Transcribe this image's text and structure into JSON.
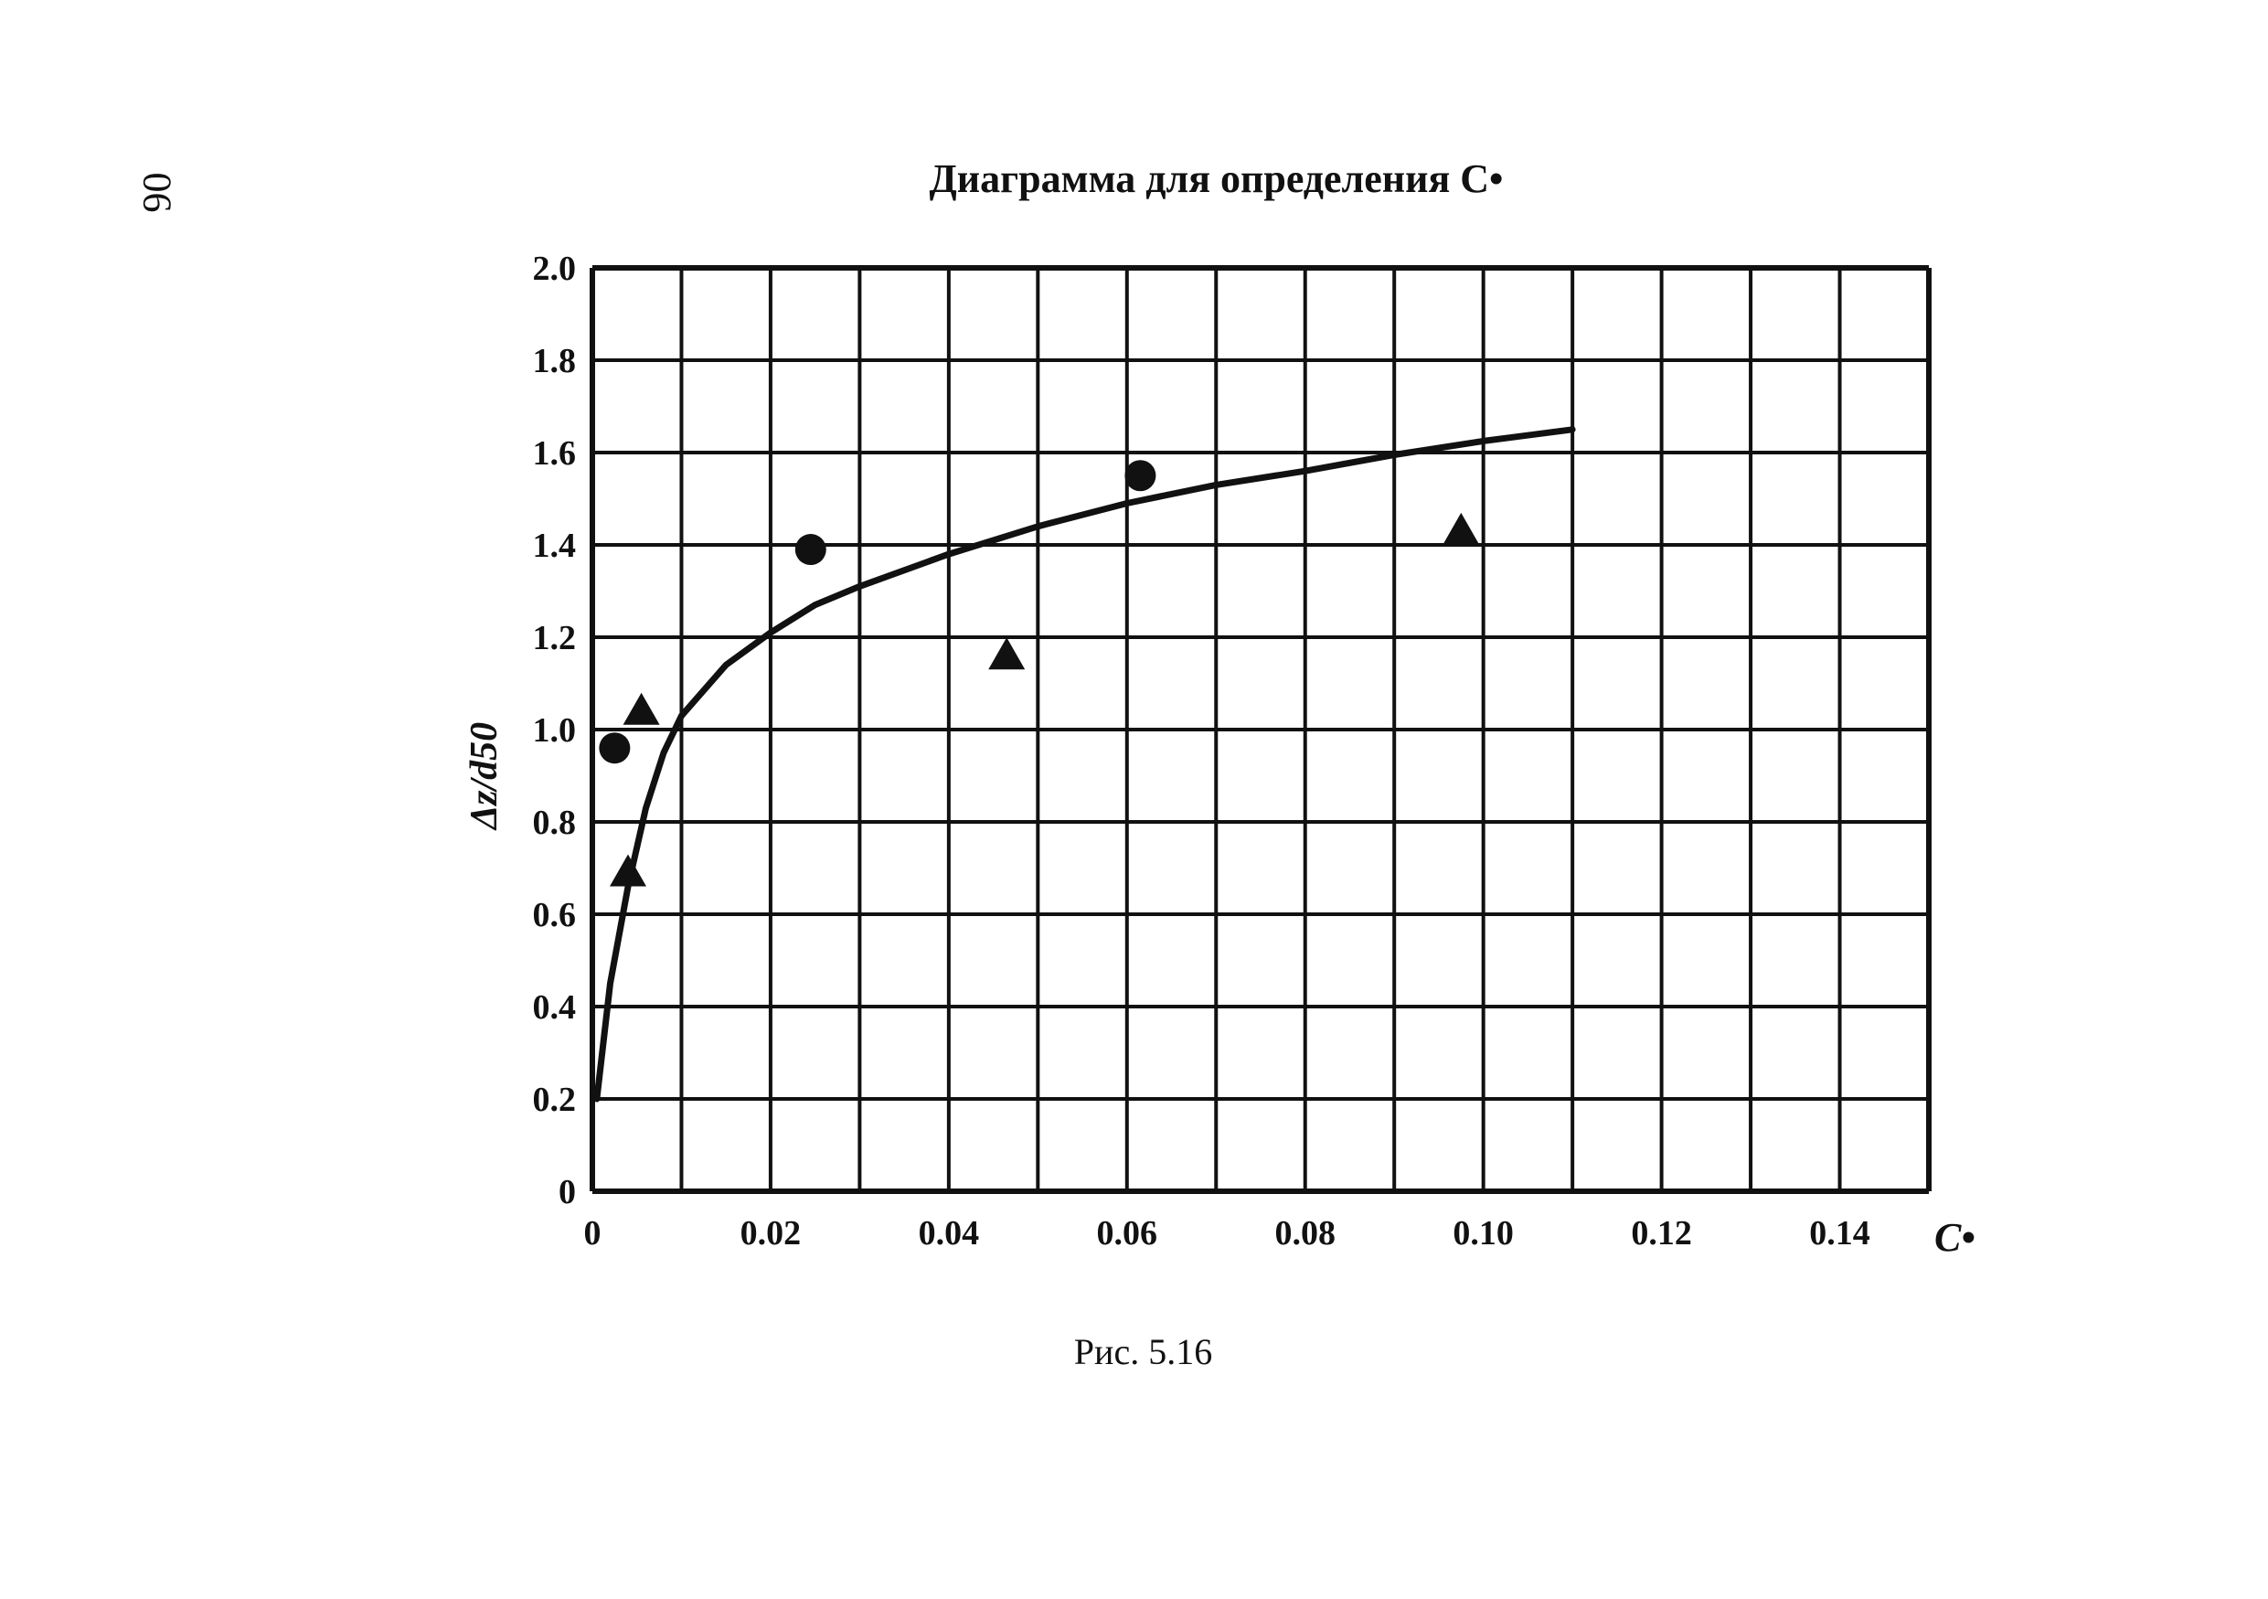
{
  "page": {
    "number": "06"
  },
  "caption": "Рис. 5.16",
  "chart_data": {
    "type": "scatter",
    "title": "Диаграмма для определения C•",
    "xlabel": "C•",
    "ylabel": "Δz/d50",
    "xlim": [
      0,
      0.15
    ],
    "ylim": [
      0,
      2.0
    ],
    "x_ticks": [
      0,
      0.02,
      0.04,
      0.06,
      0.08,
      0.1,
      0.12,
      0.14
    ],
    "x_tick_labels": [
      "0",
      "0.02",
      "0.04",
      "0.06",
      "0.08",
      "0.10",
      "0.12",
      "0.14"
    ],
    "y_ticks": [
      0,
      0.2,
      0.4,
      0.6,
      0.8,
      1.0,
      1.2,
      1.4,
      1.6,
      1.8,
      2.0
    ],
    "y_tick_labels": [
      "0",
      "0.2",
      "0.4",
      "0.6",
      "0.8",
      "1.0",
      "1.2",
      "1.4",
      "1.6",
      "1.8",
      "2.0"
    ],
    "grid": true,
    "grid_x_step": 0.01,
    "grid_y_step": 0.2,
    "series": [
      {
        "marker": "circle",
        "points": [
          [
            0.0025,
            0.96
          ],
          [
            0.0245,
            1.39
          ],
          [
            0.0615,
            1.55
          ]
        ]
      },
      {
        "marker": "triangle",
        "points": [
          [
            0.0055,
            1.04
          ],
          [
            0.004,
            0.69
          ],
          [
            0.0465,
            1.16
          ],
          [
            0.0975,
            1.43
          ]
        ]
      },
      {
        "marker": "line",
        "points": [
          [
            0.0005,
            0.2
          ],
          [
            0.002,
            0.45
          ],
          [
            0.004,
            0.66
          ],
          [
            0.006,
            0.83
          ],
          [
            0.008,
            0.95
          ],
          [
            0.01,
            1.03
          ],
          [
            0.015,
            1.14
          ],
          [
            0.02,
            1.21
          ],
          [
            0.025,
            1.27
          ],
          [
            0.03,
            1.31
          ],
          [
            0.04,
            1.38
          ],
          [
            0.05,
            1.44
          ],
          [
            0.06,
            1.49
          ],
          [
            0.07,
            1.53
          ],
          [
            0.08,
            1.56
          ],
          [
            0.09,
            1.595
          ],
          [
            0.1,
            1.625
          ],
          [
            0.11,
            1.65
          ]
        ]
      }
    ]
  }
}
